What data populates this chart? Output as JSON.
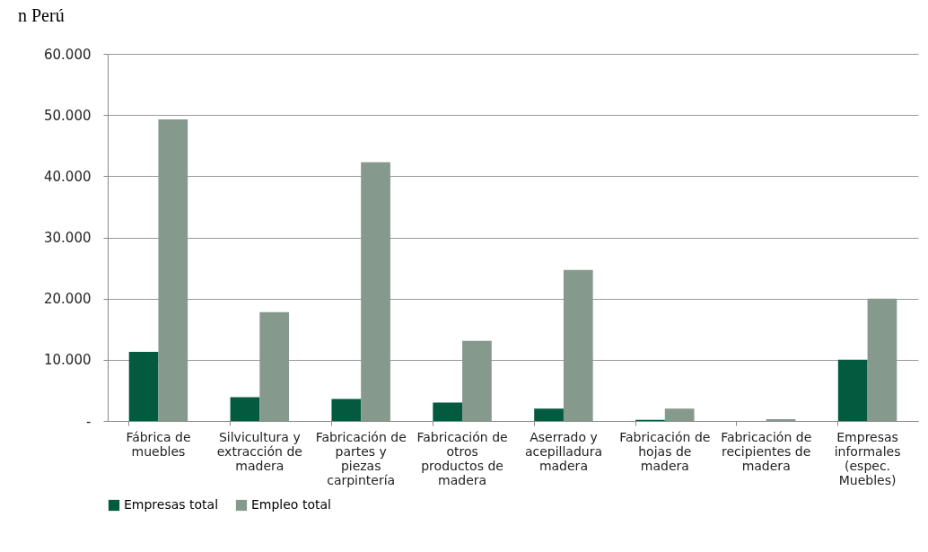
{
  "chart_data": {
    "type": "bar",
    "title": "n Perú",
    "categories": [
      "Fábrica de muebles",
      "Silvicultura y extracción de madera",
      "Fabricación de partes y piezas carpintería",
      "Fabricación de otros productos de madera",
      "Aserrado y acepilladura madera",
      "Fabricación de hojas de madera",
      "Fabricación de recipientes de madera",
      "Empresas informales (espec. Muebles)"
    ],
    "series": [
      {
        "name": "Empresas total",
        "color": "#045a3f",
        "values": [
          11300,
          3900,
          3600,
          3000,
          2000,
          200,
          null,
          10000
        ]
      },
      {
        "name": "Empleo total",
        "color": "#86998d",
        "values": [
          49300,
          17800,
          42300,
          13100,
          24700,
          2000,
          300,
          20000
        ]
      }
    ],
    "ylim": [
      0,
      60000
    ],
    "yticks": [
      {
        "value": 0,
        "label": "-"
      },
      {
        "value": 10000,
        "label": "10.000"
      },
      {
        "value": 20000,
        "label": "20.000"
      },
      {
        "value": 30000,
        "label": "30.000"
      },
      {
        "value": 40000,
        "label": "40.000"
      },
      {
        "value": 50000,
        "label": "50.000"
      },
      {
        "value": 60000,
        "label": "60.000"
      }
    ],
    "grid": "y",
    "legend": "bottom"
  }
}
